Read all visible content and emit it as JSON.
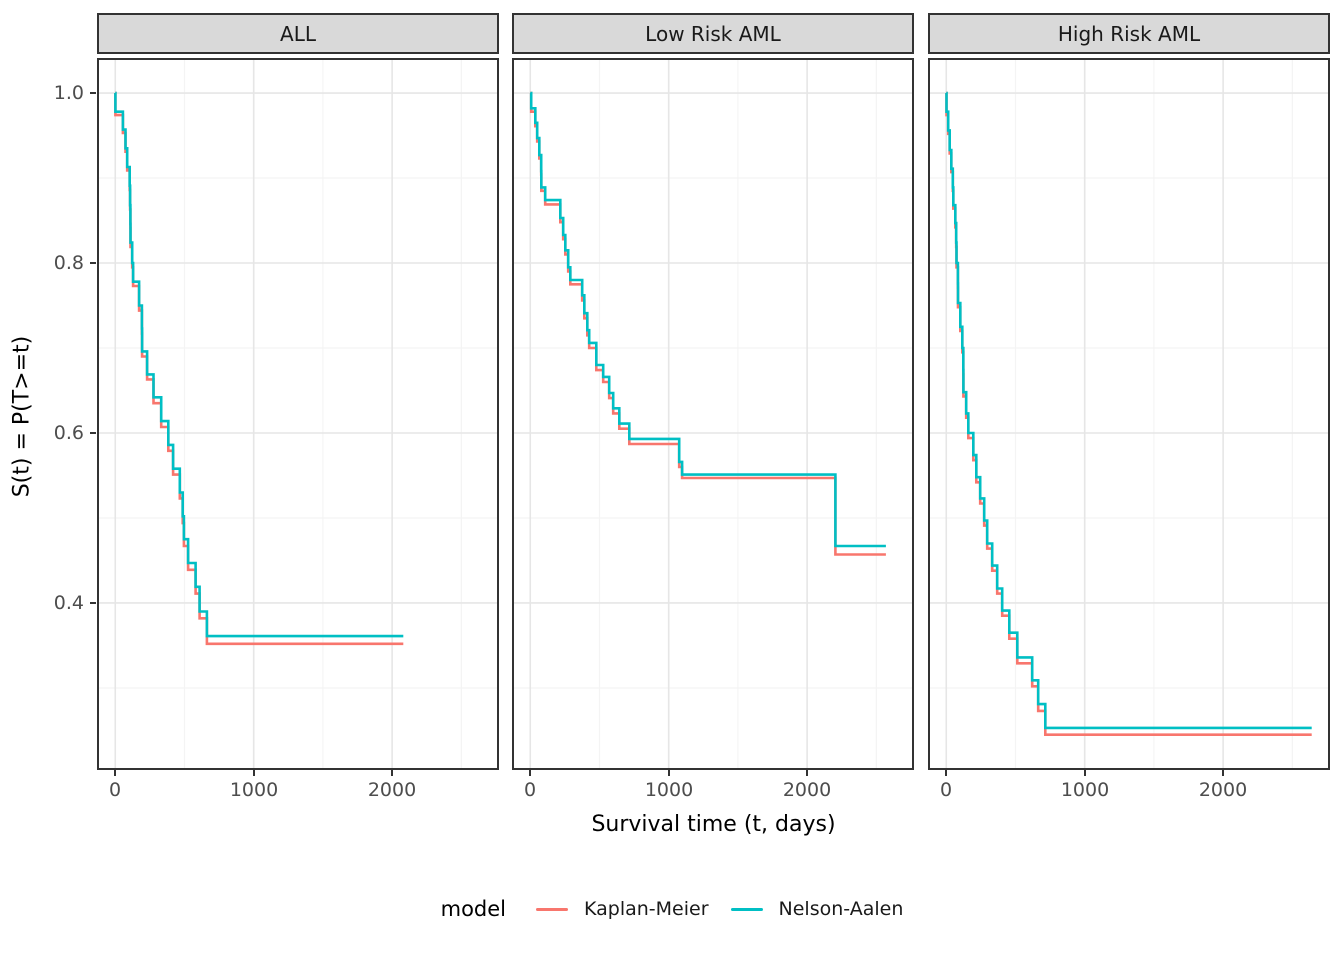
{
  "figure": {
    "x_label": "Survival time (t, days)",
    "y_label": "S(t) = P(T>=t)"
  },
  "colors": {
    "kaplan_meier": "#F8766D",
    "nelson_aalen": "#00BFC4",
    "strip_background": "#D9D9D9",
    "panel_border": "#333333",
    "grid_major": "#E6E6E6",
    "grid_minor": "#F4F4F4",
    "tick_label": "#4D4D4D",
    "tick_mark": "#333333"
  },
  "axes": {
    "y": {
      "ticks": [
        {
          "value": 1.0,
          "label": "1.0"
        },
        {
          "value": 0.8,
          "label": "0.8"
        },
        {
          "value": 0.6,
          "label": "0.6"
        },
        {
          "value": 0.4,
          "label": "0.4"
        }
      ],
      "minor": [
        0.9,
        0.7,
        0.5,
        0.3
      ]
    },
    "x": {
      "ticks": [
        {
          "value": 0,
          "label": "0"
        },
        {
          "value": 1000,
          "label": "1000"
        },
        {
          "value": 2000,
          "label": "2000"
        }
      ],
      "minor": [
        500,
        1500,
        2500
      ]
    }
  },
  "legend": {
    "title": "model",
    "items": [
      {
        "label": "Kaplan-Meier",
        "color": "#F8766D"
      },
      {
        "label": "Nelson-Aalen",
        "color": "#00BFC4"
      }
    ]
  },
  "chart_data": {
    "type": "line",
    "subtype": "step-survival-curves",
    "xlabel": "Survival time (t, days)",
    "ylabel": "S(t) = P(T>=t)",
    "x_domain": [
      -132,
      2772
    ],
    "y_domain": [
      0.2035,
      1.0412
    ],
    "grid": true,
    "legend_position": "bottom",
    "panels": [
      {
        "label": "ALL",
        "t_end": 2081,
        "event_times": [
          1,
          55,
          74,
          86,
          104,
          107,
          109,
          110,
          122,
          129,
          172,
          192,
          194,
          230,
          276,
          332,
          383,
          418,
          466,
          487,
          496,
          526,
          580,
          609,
          662
        ],
        "km": [
          0.974,
          0.953,
          0.931,
          0.909,
          0.886,
          0.863,
          0.841,
          0.819,
          0.795,
          0.773,
          0.744,
          0.717,
          0.69,
          0.663,
          0.635,
          0.607,
          0.579,
          0.551,
          0.523,
          0.494,
          0.467,
          0.439,
          0.411,
          0.382,
          0.352
        ],
        "na": [
          0.978,
          0.957,
          0.935,
          0.913,
          0.891,
          0.868,
          0.846,
          0.824,
          0.8,
          0.778,
          0.75,
          0.723,
          0.696,
          0.669,
          0.642,
          0.614,
          0.586,
          0.558,
          0.53,
          0.502,
          0.475,
          0.447,
          0.419,
          0.39,
          0.361
        ]
      },
      {
        "label": "Low Risk AML",
        "t_end": 2569,
        "event_times": [
          7,
          36,
          50,
          65,
          79,
          80,
          108,
          217,
          238,
          253,
          274,
          289,
          375,
          390,
          412,
          426,
          477,
          527,
          570,
          599,
          643,
          715,
          1076,
          1097,
          2204
        ],
        "km": [
          0.978,
          0.961,
          0.943,
          0.923,
          0.904,
          0.885,
          0.869,
          0.848,
          0.828,
          0.81,
          0.79,
          0.775,
          0.756,
          0.735,
          0.715,
          0.7,
          0.674,
          0.66,
          0.641,
          0.623,
          0.605,
          0.587,
          0.56,
          0.547,
          0.457
        ],
        "na": [
          0.982,
          0.965,
          0.947,
          0.927,
          0.908,
          0.889,
          0.874,
          0.853,
          0.833,
          0.815,
          0.795,
          0.78,
          0.762,
          0.741,
          0.721,
          0.706,
          0.68,
          0.666,
          0.647,
          0.629,
          0.611,
          0.593,
          0.566,
          0.551,
          0.467
        ]
      },
      {
        "label": "High Risk AML",
        "t_end": 2640,
        "event_times": [
          2,
          14,
          25,
          36,
          47,
          51,
          65,
          72,
          74,
          84,
          85,
          101,
          116,
          123,
          124,
          144,
          159,
          195,
          217,
          245,
          274,
          296,
          332,
          368,
          404,
          455,
          513,
          621,
          664,
          715
        ],
        "km": [
          0.974,
          0.952,
          0.929,
          0.907,
          0.885,
          0.864,
          0.842,
          0.819,
          0.795,
          0.771,
          0.748,
          0.72,
          0.695,
          0.669,
          0.643,
          0.618,
          0.594,
          0.568,
          0.542,
          0.517,
          0.491,
          0.464,
          0.438,
          0.411,
          0.385,
          0.358,
          0.329,
          0.302,
          0.273,
          0.245
        ],
        "na": [
          0.978,
          0.956,
          0.933,
          0.911,
          0.889,
          0.868,
          0.847,
          0.824,
          0.8,
          0.776,
          0.753,
          0.725,
          0.7,
          0.674,
          0.648,
          0.623,
          0.6,
          0.574,
          0.548,
          0.523,
          0.497,
          0.47,
          0.444,
          0.417,
          0.391,
          0.365,
          0.336,
          0.309,
          0.281,
          0.253
        ]
      }
    ]
  }
}
